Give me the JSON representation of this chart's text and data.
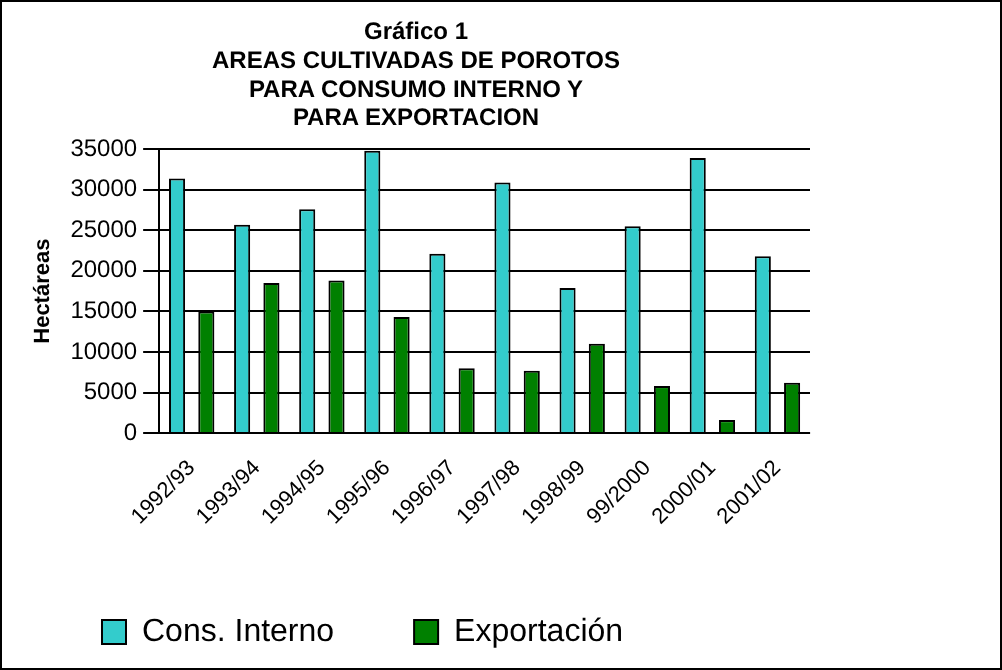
{
  "chart_data": {
    "type": "bar",
    "title": "Gráfico 1\nAREAS CULTIVADAS DE POROTOS\nPARA CONSUMO INTERNO Y\nPARA EXPORTACION",
    "ylabel": "Hectáreas",
    "categories": [
      "1992/93",
      "1993/94",
      "1994/95",
      "1995/96",
      "1996/97",
      "1997/98",
      "1998/99",
      "99/2000",
      "2000/01",
      "2001/02"
    ],
    "series": [
      {
        "name": "Cons. Interno",
        "color": "#33cccc",
        "values": [
          31400,
          25700,
          27600,
          34800,
          22100,
          30900,
          17900,
          25500,
          33900,
          21800
        ]
      },
      {
        "name": "Exportación",
        "color": "#008000",
        "values": [
          15000,
          18500,
          18800,
          14300,
          8000,
          7700,
          11000,
          5800,
          1600,
          6200
        ]
      }
    ],
    "ylim": [
      0,
      35000
    ],
    "yticks": [
      0,
      5000,
      10000,
      15000,
      20000,
      25000,
      30000,
      35000
    ],
    "grid": "y",
    "legend": "bottom"
  }
}
